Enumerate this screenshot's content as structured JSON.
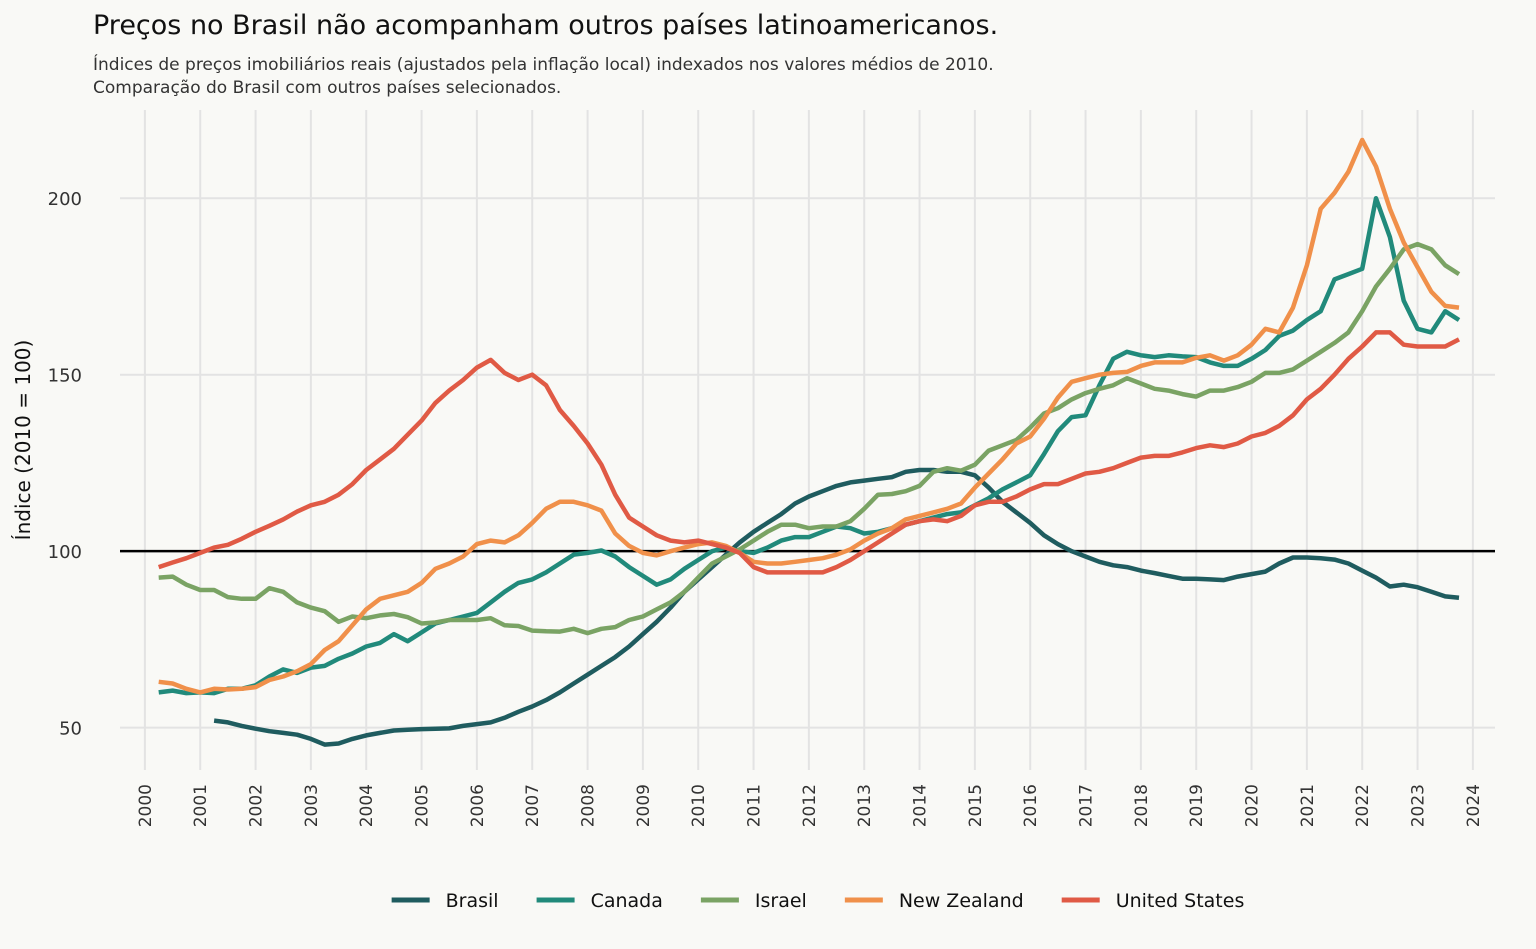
{
  "chart_data": {
    "type": "line",
    "title": "Preços no Brasil não acompanham outros países latinoamericanos.",
    "subtitle": [
      "Índices de preços imobiliários reais (ajustados pela inflação local) indexados nos valores médios de 2010.",
      "Comparação do Brasil com outros países selecionados."
    ],
    "y_label": "Índice (2010 = 100)",
    "x": [
      2000.25,
      2000.5,
      2000.75,
      2001,
      2001.25,
      2001.5,
      2001.75,
      2002,
      2002.25,
      2002.5,
      2002.75,
      2003,
      2003.25,
      2003.5,
      2003.75,
      2004,
      2004.25,
      2004.5,
      2004.75,
      2005,
      2005.25,
      2005.5,
      2005.75,
      2006,
      2006.25,
      2006.5,
      2006.75,
      2007,
      2007.25,
      2007.5,
      2007.75,
      2008,
      2008.25,
      2008.5,
      2008.75,
      2009,
      2009.25,
      2009.5,
      2009.75,
      2010,
      2010.25,
      2010.5,
      2010.75,
      2011,
      2011.25,
      2011.5,
      2011.75,
      2012,
      2012.25,
      2012.5,
      2012.75,
      2013,
      2013.25,
      2013.5,
      2013.75,
      2014,
      2014.25,
      2014.5,
      2014.75,
      2015,
      2015.25,
      2015.5,
      2015.75,
      2016,
      2016.25,
      2016.5,
      2016.75,
      2017,
      2017.25,
      2017.5,
      2017.75,
      2018,
      2018.25,
      2018.5,
      2018.75,
      2019,
      2019.25,
      2019.5,
      2019.75,
      2020,
      2020.25,
      2020.5,
      2020.75,
      2021,
      2021.25,
      2021.5,
      2021.75,
      2022,
      2022.25,
      2022.5,
      2022.75,
      2023,
      2023.25,
      2023.5,
      2023.75
    ],
    "series": [
      {
        "name": "Brasil",
        "color": "#1f5c5f",
        "values": [
          null,
          null,
          null,
          null,
          52,
          51.5,
          50.5,
          49.7,
          49,
          48.5,
          48,
          46.8,
          45.2,
          45.5,
          46.8,
          47.8,
          48.5,
          49.2,
          49.4,
          49.6,
          49.7,
          49.8,
          50.5,
          51,
          51.5,
          52.8,
          54.5,
          56,
          57.8,
          60,
          62.5,
          65,
          67.5,
          70,
          73,
          76.5,
          80,
          84,
          88.5,
          92,
          95.5,
          99,
          102.5,
          105.5,
          108,
          110.5,
          113.5,
          115.5,
          117,
          118.5,
          119.5,
          120,
          120.5,
          121,
          122.5,
          123,
          123,
          122.5,
          122.5,
          121.5,
          118,
          114,
          111,
          108,
          104.5,
          102,
          100,
          98.5,
          97,
          96,
          95.5,
          94.5,
          93.8,
          93,
          92.2,
          92.2,
          92,
          91.8,
          92.8,
          93.5,
          94.2,
          96.5,
          98.2,
          98.2,
          98,
          97.6,
          96.5,
          94.5,
          92.5,
          90,
          90.5,
          89.8,
          88.5,
          87.2,
          86.8
        ]
      },
      {
        "name": "Canada",
        "color": "#218a7b",
        "values": [
          60,
          60.5,
          59.8,
          60,
          59.8,
          61,
          61,
          62,
          64.5,
          66.5,
          65.5,
          67,
          67.5,
          69.5,
          71,
          73,
          74,
          76.5,
          74.5,
          77,
          79.5,
          80.5,
          81.5,
          82.5,
          85.5,
          88.5,
          91,
          92,
          94,
          96.5,
          99,
          99.5,
          100.2,
          98.5,
          95.5,
          93,
          90.5,
          92,
          95,
          97.5,
          100,
          101,
          100,
          99.5,
          101,
          103,
          104,
          104,
          105.5,
          107,
          106.5,
          105,
          105.5,
          106.5,
          107.5,
          108.5,
          109.5,
          110.5,
          111,
          113,
          115,
          117.5,
          119.5,
          121.5,
          127.5,
          134,
          138,
          138.5,
          147,
          154.5,
          156.5,
          155.5,
          155,
          155.5,
          155.2,
          155,
          153.5,
          152.5,
          152.5,
          154.5,
          157,
          161,
          162.5,
          165.5,
          168,
          177,
          178.5,
          180,
          200,
          189,
          171,
          163,
          162,
          168,
          165.5
        ]
      },
      {
        "name": "Israel",
        "color": "#7aa364",
        "values": [
          92.5,
          92.8,
          90.5,
          89,
          89,
          87,
          86.5,
          86.5,
          89.5,
          88.5,
          85.5,
          84,
          83,
          80,
          81.5,
          81,
          81.8,
          82.2,
          81.3,
          79.5,
          79.8,
          80.5,
          80.5,
          80.5,
          81,
          79,
          78.8,
          77.5,
          77.3,
          77.2,
          78,
          76.8,
          78,
          78.5,
          80.5,
          81.5,
          83.5,
          85.5,
          88.5,
          92.5,
          96.5,
          98.5,
          100.5,
          103,
          105.5,
          107.5,
          107.5,
          106.5,
          107,
          107,
          108.5,
          112,
          116,
          116.2,
          117,
          118.5,
          122.5,
          123.5,
          122.8,
          124.5,
          128.5,
          130,
          131.5,
          135,
          139,
          140.5,
          143,
          144.8,
          146,
          147,
          149,
          147.5,
          146,
          145.5,
          144.5,
          143.8,
          145.5,
          145.5,
          146.5,
          148,
          150.5,
          150.5,
          151.5,
          154,
          156.5,
          159,
          162,
          168,
          175,
          180,
          185.5,
          187,
          185.5,
          181,
          178.5
        ]
      },
      {
        "name": "New Zealand",
        "color": "#f0904a",
        "values": [
          63,
          62.5,
          61,
          60,
          61,
          60.8,
          61,
          61.5,
          63.5,
          64.5,
          66,
          68,
          72,
          74.5,
          79,
          83.5,
          86.5,
          87.5,
          88.5,
          91,
          95,
          96.5,
          98.5,
          102,
          103,
          102.5,
          104.5,
          108,
          112,
          114,
          114,
          113,
          111.5,
          105,
          101.5,
          99.5,
          98.8,
          100,
          101,
          102,
          102.5,
          101.5,
          99.5,
          97,
          96.5,
          96.5,
          97,
          97.5,
          98,
          99,
          100.5,
          103,
          105,
          106.5,
          109,
          110,
          111,
          112,
          113.5,
          118,
          122,
          126,
          130.5,
          132.5,
          137.5,
          143.5,
          148,
          149,
          150,
          150.5,
          150.8,
          152.5,
          153.5,
          153.5,
          153.5,
          154.8,
          155.5,
          154,
          155.5,
          158.5,
          163,
          162,
          169,
          181,
          197,
          201.5,
          207.5,
          216.5,
          209,
          197,
          187.5,
          180.5,
          173.5,
          169.5,
          169
        ]
      },
      {
        "name": "United States",
        "color": "#e05a45",
        "values": [
          95.5,
          96.8,
          98,
          99.5,
          101,
          101.8,
          103.5,
          105.5,
          107.2,
          109,
          111.2,
          113,
          114,
          116,
          119,
          123,
          126,
          129,
          133,
          137,
          142,
          145.5,
          148.5,
          152,
          154.2,
          150.5,
          148.5,
          150,
          147,
          140,
          135.5,
          130.5,
          124.5,
          116,
          109.5,
          107,
          104.5,
          103,
          102.5,
          103,
          102,
          101,
          99.5,
          95.5,
          94,
          94,
          94,
          94,
          94,
          95.5,
          97.5,
          100,
          102.5,
          105,
          107.5,
          108.5,
          109,
          108.5,
          110,
          113,
          114,
          114,
          115.5,
          117.5,
          119,
          119,
          120.5,
          122,
          122.5,
          123.5,
          125,
          126.5,
          127,
          127,
          128,
          129.2,
          130,
          129.5,
          130.5,
          132.5,
          133.5,
          135.5,
          138.5,
          143,
          146,
          150,
          154.5,
          158,
          162,
          162,
          158.5,
          158,
          158,
          158,
          160
        ]
      }
    ],
    "xlim": [
      1999.55,
      2024.4
    ],
    "ylim": [
      38,
      225
    ],
    "xticks": [
      2000,
      2001,
      2002,
      2003,
      2004,
      2005,
      2006,
      2007,
      2008,
      2009,
      2010,
      2011,
      2012,
      2013,
      2014,
      2015,
      2016,
      2017,
      2018,
      2019,
      2020,
      2021,
      2022,
      2023,
      2024
    ],
    "yticks": [
      50,
      100,
      150,
      200
    ],
    "hline": 100,
    "grid": true,
    "legend": "bottom"
  }
}
